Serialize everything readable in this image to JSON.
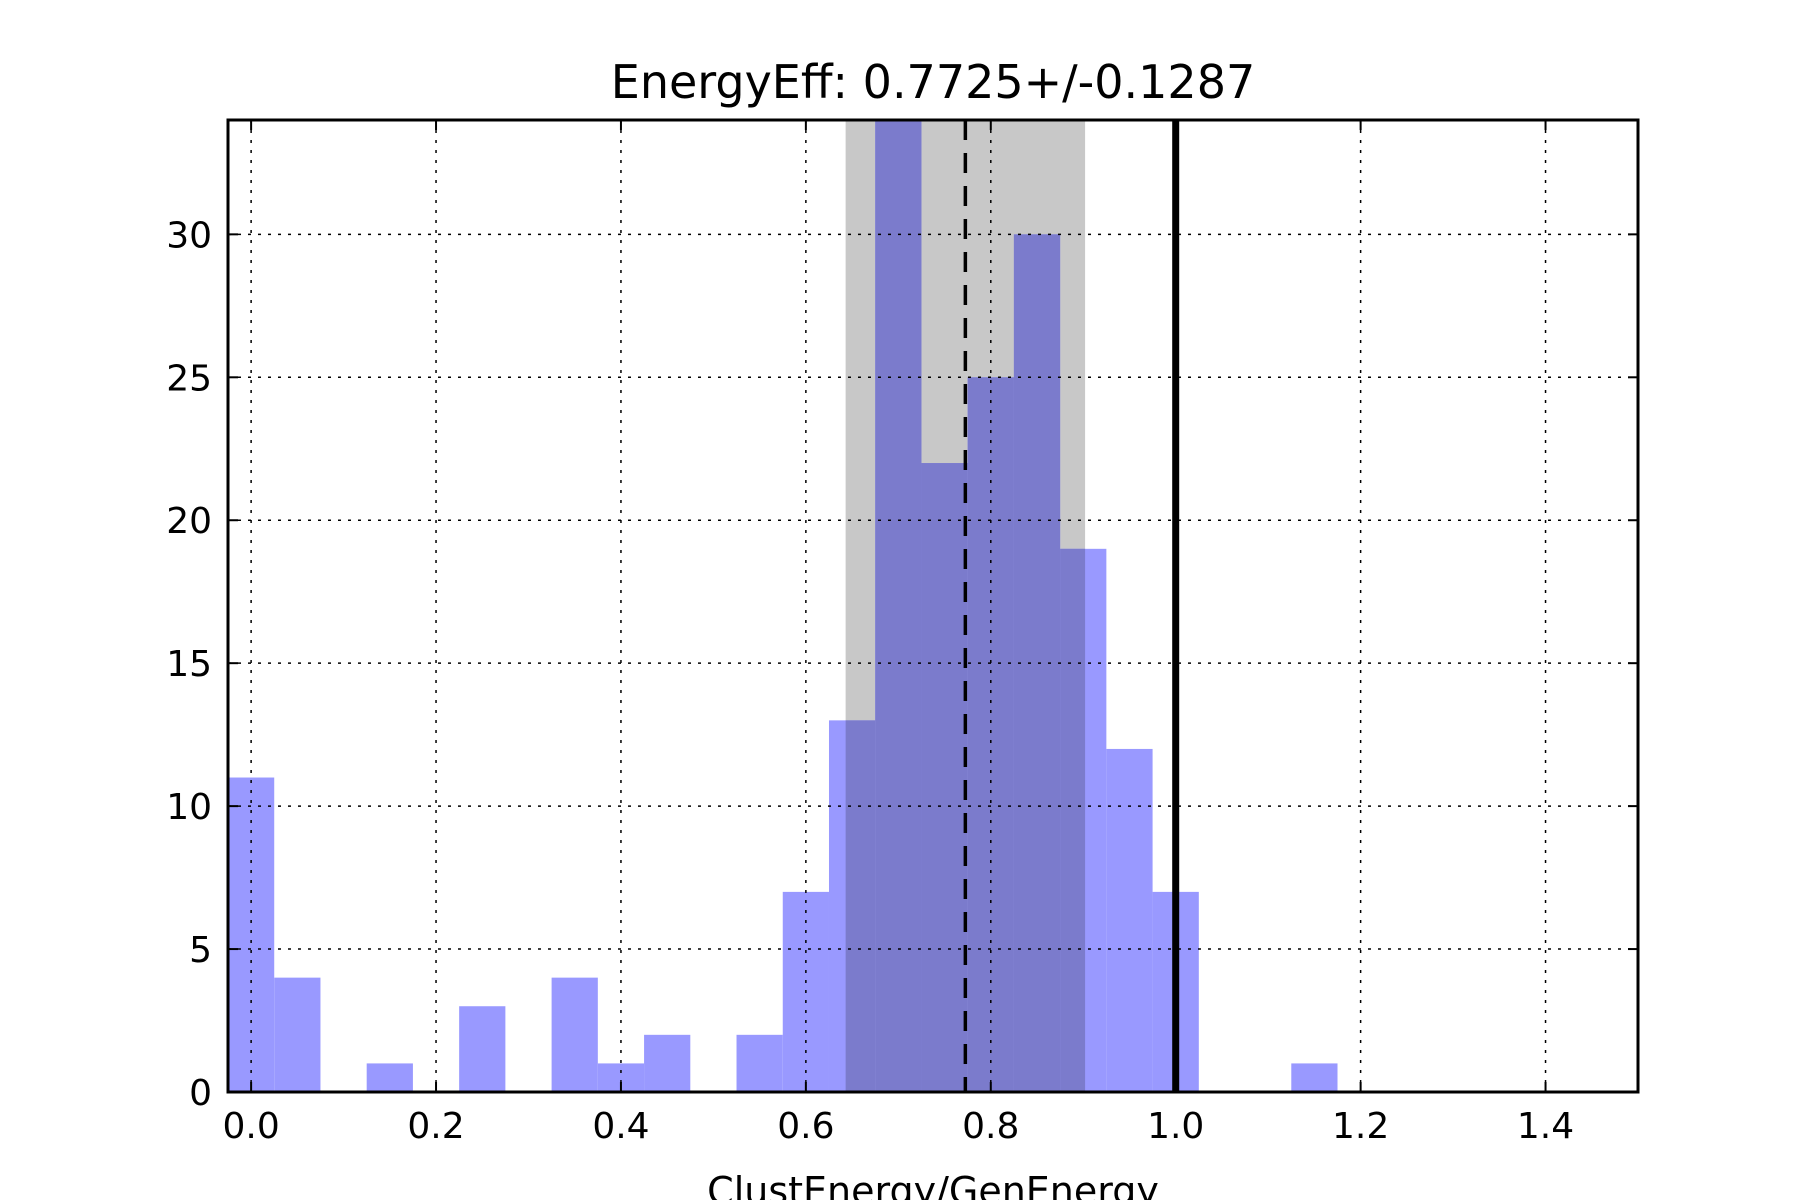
{
  "chart_data": {
    "type": "bar",
    "title": "EnergyEff: 0.7725+/-0.1287",
    "xlabel": "ClustEnergy/GenEnergy",
    "ylabel": "",
    "xlim": [
      -0.025,
      1.5
    ],
    "ylim": [
      0,
      34
    ],
    "xticks": [
      0.0,
      0.2,
      0.4,
      0.6,
      0.8,
      1.0,
      1.2,
      1.4
    ],
    "xtick_labels": [
      "0.0",
      "0.2",
      "0.4",
      "0.6",
      "0.8",
      "1.0",
      "1.2",
      "1.4"
    ],
    "yticks": [
      0,
      5,
      10,
      15,
      20,
      25,
      30
    ],
    "ytick_labels": [
      "0",
      "5",
      "10",
      "15",
      "20",
      "25",
      "30"
    ],
    "grid": true,
    "bin_edges": [
      -0.025,
      0.025,
      0.075,
      0.125,
      0.175,
      0.225,
      0.275,
      0.325,
      0.375,
      0.425,
      0.475,
      0.525,
      0.575,
      0.625,
      0.675,
      0.725,
      0.775,
      0.825,
      0.875,
      0.925,
      0.975,
      1.025,
      1.075,
      1.125,
      1.175,
      1.225,
      1.275,
      1.325,
      1.375,
      1.425,
      1.475
    ],
    "counts": [
      11,
      4,
      0,
      1,
      0,
      3,
      0,
      4,
      1,
      2,
      0,
      2,
      7,
      13,
      34,
      22,
      25,
      30,
      19,
      12,
      7,
      0,
      0,
      1,
      0,
      0,
      0,
      0,
      0,
      0
    ],
    "highlight_region": {
      "x_start": 0.643,
      "x_end": 0.902
    },
    "mean_line": 0.7725,
    "reference_line": 1.0,
    "colors": {
      "bars": "#9999ff",
      "band": "#c8c8c8",
      "overlap": "#7b7bcc",
      "lines": "#000000"
    }
  }
}
